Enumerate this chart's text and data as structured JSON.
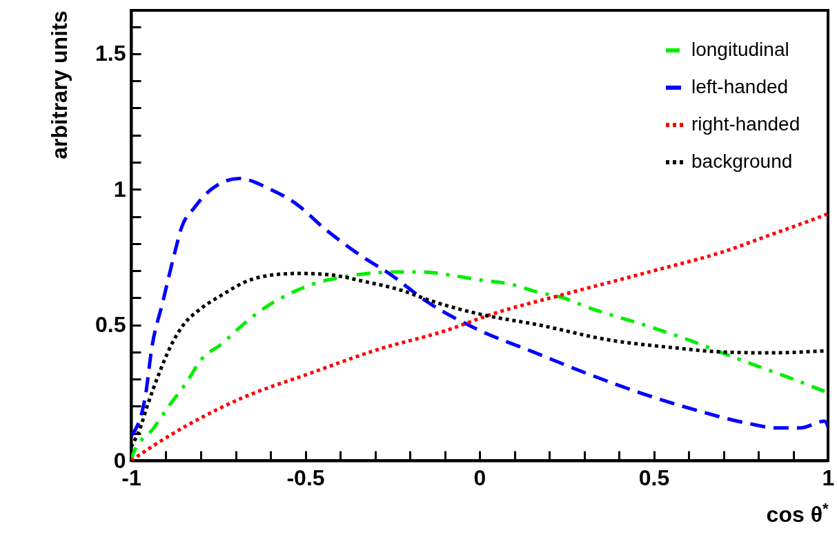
{
  "chart_data": {
    "type": "line",
    "xlabel": "cos θ$^{*}$",
    "ylabel": "arbitrary units",
    "xlim": [
      -1,
      1
    ],
    "ylim": [
      0,
      1.66
    ],
    "xticks": [
      -1,
      {
        "value": -0.9,
        "label": null
      },
      {
        "value": -0.8,
        "label": null
      },
      {
        "value": -0.7,
        "label": null
      },
      {
        "value": -0.6,
        "label": null
      },
      -0.5,
      {
        "value": -0.4,
        "label": null
      },
      {
        "value": -0.3,
        "label": null
      },
      {
        "value": -0.2,
        "label": null
      },
      {
        "value": -0.1,
        "label": null
      },
      0,
      {
        "value": 0.1,
        "label": null
      },
      {
        "value": 0.2,
        "label": null
      },
      {
        "value": 0.3,
        "label": null
      },
      {
        "value": 0.4,
        "label": null
      },
      0.5,
      {
        "value": 0.6,
        "label": null
      },
      {
        "value": 0.7,
        "label": null
      },
      {
        "value": 0.8,
        "label": null
      },
      {
        "value": 0.9,
        "label": null
      },
      1
    ],
    "yticks": [
      0,
      {
        "value": 0.1,
        "label": null
      },
      {
        "value": 0.2,
        "label": null
      },
      {
        "value": 0.3,
        "label": null
      },
      {
        "value": 0.4,
        "label": null
      },
      0.5,
      {
        "value": 0.6,
        "label": null
      },
      {
        "value": 0.7,
        "label": null
      },
      {
        "value": 0.8,
        "label": null
      },
      {
        "value": 0.9,
        "label": null
      },
      1,
      {
        "value": 1.1,
        "label": null
      },
      {
        "value": 1.2,
        "label": null
      },
      {
        "value": 1.3,
        "label": null
      },
      {
        "value": 1.4,
        "label": null
      },
      1.5,
      {
        "value": 1.6,
        "label": null
      }
    ],
    "grid": false,
    "legend": "top right",
    "series": [
      {
        "name": "longitudinal",
        "color": "#00ee00",
        "line_style": "dashdot",
        "x": [
          -1,
          -0.994,
          -0.935,
          -0.895,
          -0.84,
          -0.8,
          -0.74,
          -0.68,
          -0.62,
          -0.545,
          -0.48,
          -0.4,
          -0.32,
          -0.25,
          -0.16,
          -0.09,
          0,
          0.09,
          0.17,
          0.24,
          0.31,
          0.46,
          0.61,
          0.68,
          0.76,
          0.9,
          1
        ],
        "values": [
          0.0,
          0.025,
          0.12,
          0.195,
          0.29,
          0.37,
          0.43,
          0.5,
          0.56,
          0.615,
          0.65,
          0.675,
          0.69,
          0.695,
          0.695,
          0.685,
          0.666,
          0.65,
          0.62,
          0.6,
          0.565,
          0.505,
          0.44,
          0.405,
          0.366,
          0.3,
          0.25
        ]
      },
      {
        "name": "left-handed",
        "color": "#0000ff",
        "line_style": "dashed",
        "x": [
          -1,
          -0.96,
          -0.94,
          -0.91,
          -0.877,
          -0.855,
          -0.82,
          -0.77,
          -0.69,
          -0.6,
          -0.53,
          -0.44,
          -0.34,
          -0.26,
          -0.15,
          0,
          0.155,
          0.31,
          0.46,
          0.61,
          0.77,
          0.855,
          0.92,
          0.99,
          1
        ],
        "values": [
          0.09,
          0.23,
          0.42,
          0.58,
          0.755,
          0.86,
          0.93,
          1.0,
          1.04,
          1.0,
          0.95,
          0.85,
          0.755,
          0.69,
          0.585,
          0.48,
          0.4,
          0.32,
          0.25,
          0.19,
          0.137,
          0.12,
          0.12,
          0.145,
          0.125
        ]
      },
      {
        "name": "right-handed",
        "color": "#ff0000",
        "line_style": "dotted",
        "x": [
          -1,
          -0.887,
          -0.69,
          -0.49,
          -0.29,
          -0.095,
          0.036,
          0.234,
          0.5,
          0.7,
          0.83,
          0.98,
          1
        ],
        "values": [
          0,
          0.094,
          0.226,
          0.32,
          0.41,
          0.48,
          0.54,
          0.61,
          0.7,
          0.77,
          0.83,
          0.9,
          0.91
        ]
      },
      {
        "name": "background",
        "color": "#000000",
        "line_style": "dotted",
        "x": [
          -1,
          -0.974,
          -0.954,
          -0.92,
          -0.887,
          -0.85,
          -0.8,
          -0.74,
          -0.67,
          -0.59,
          -0.52,
          -0.43,
          -0.33,
          -0.23,
          -0.13,
          0,
          0.17,
          0.37,
          0.565,
          0.7,
          0.83,
          1
        ],
        "values": [
          0.05,
          0.12,
          0.2,
          0.32,
          0.42,
          0.5,
          0.56,
          0.61,
          0.66,
          0.685,
          0.69,
          0.685,
          0.66,
          0.63,
          0.585,
          0.54,
          0.5,
          0.445,
          0.415,
          0.4,
          0.397,
          0.405
        ]
      }
    ]
  }
}
